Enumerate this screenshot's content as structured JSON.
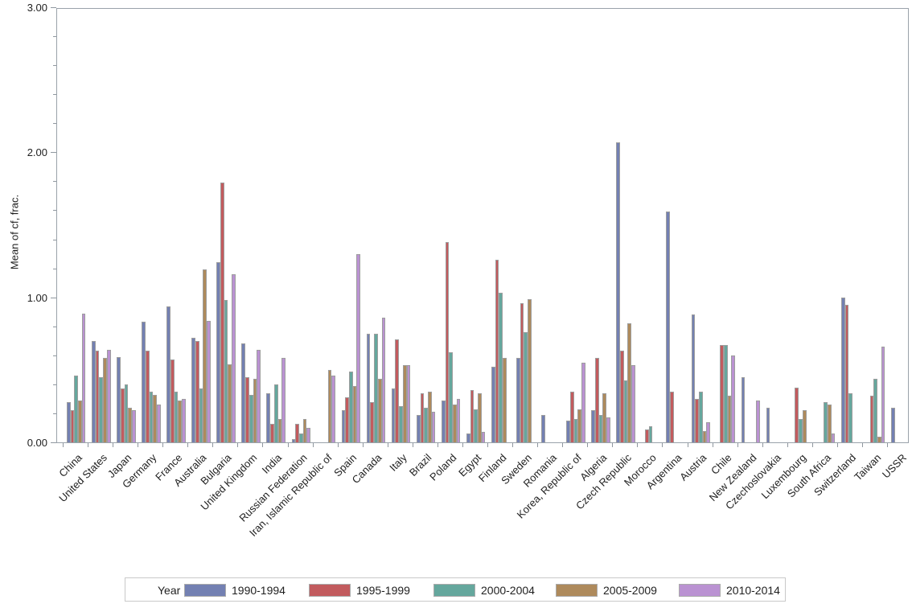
{
  "figure": {
    "y_axis_title": "Mean of cf, frac.",
    "legend_title": "Year",
    "axis_color": "#9AA2AA",
    "bar_border_color": "#9e9e9e",
    "background": "#ffffff"
  },
  "chart_data": {
    "type": "bar",
    "title": "",
    "xlabel": "",
    "ylabel": "Mean of cf, frac.",
    "ylim": [
      0,
      3.0
    ],
    "y_major_ticks": [
      0.0,
      1.0,
      2.0,
      3.0
    ],
    "y_tick_label_format": [
      "0.00",
      "1.00",
      "2.00",
      "3.00"
    ],
    "y_minor_tick_step": 0.2,
    "grid": false,
    "legend_position": "bottom",
    "legend_title": "Year",
    "categories": [
      "China",
      "United States",
      "Japan",
      "Germany",
      "France",
      "Australia",
      "Bulgaria",
      "United Kingdom",
      "India",
      "Russian Federation",
      "Iran, Islamic Republic of",
      "Spain",
      "Canada",
      "Italy",
      "Brazil",
      "Poland",
      "Egypt",
      "Finland",
      "Sweden",
      "Romania",
      "Korea, Republic of",
      "Algeria",
      "Czech Republic",
      "Morocco",
      "Argentina",
      "Austria",
      "Chile",
      "New Zealand",
      "Czechoslovakia",
      "Luxembourg",
      "South Africa",
      "Switzerland",
      "Taiwan",
      "USSR"
    ],
    "series": [
      {
        "name": "1990-1994",
        "color": "#7380B2",
        "values": [
          0.28,
          0.7,
          0.59,
          0.83,
          0.94,
          0.72,
          1.24,
          0.68,
          0.34,
          0.02,
          null,
          0.22,
          0.75,
          0.37,
          0.19,
          0.29,
          0.06,
          0.52,
          0.58,
          0.19,
          0.15,
          0.22,
          2.07,
          null,
          1.59,
          0.88,
          null,
          0.45,
          0.24,
          null,
          null,
          1.0,
          null,
          0.24
        ]
      },
      {
        "name": "1995-1999",
        "color": "#C25B5E",
        "values": [
          0.22,
          0.63,
          0.37,
          0.63,
          0.57,
          0.7,
          1.79,
          0.45,
          0.13,
          0.13,
          null,
          0.31,
          0.28,
          0.71,
          0.34,
          1.38,
          0.36,
          1.26,
          0.96,
          null,
          0.35,
          0.58,
          0.63,
          0.09,
          0.35,
          0.3,
          0.67,
          null,
          null,
          0.38,
          null,
          0.95,
          0.32,
          null
        ]
      },
      {
        "name": "2000-2004",
        "color": "#65A79D",
        "values": [
          0.46,
          0.45,
          0.4,
          0.35,
          0.35,
          0.37,
          0.98,
          0.33,
          0.4,
          0.06,
          null,
          0.49,
          0.75,
          0.25,
          0.24,
          0.62,
          0.23,
          1.03,
          0.76,
          null,
          0.16,
          0.19,
          0.43,
          0.11,
          null,
          0.35,
          0.67,
          null,
          null,
          0.16,
          0.28,
          0.34,
          0.44,
          null
        ]
      },
      {
        "name": "2005-2009",
        "color": "#AE8A5C",
        "values": [
          0.29,
          0.58,
          0.24,
          0.33,
          0.29,
          1.19,
          0.54,
          0.44,
          0.16,
          0.16,
          0.5,
          0.39,
          0.44,
          0.53,
          0.35,
          0.26,
          0.34,
          0.58,
          0.99,
          null,
          0.23,
          0.34,
          0.82,
          null,
          null,
          0.08,
          0.32,
          null,
          null,
          0.22,
          0.26,
          null,
          0.04,
          null
        ]
      },
      {
        "name": "2010-2014",
        "color": "#BA92D2",
        "values": [
          0.89,
          0.64,
          0.22,
          0.26,
          0.3,
          0.84,
          1.16,
          0.64,
          0.58,
          0.1,
          0.46,
          1.3,
          0.86,
          0.53,
          0.21,
          0.3,
          0.07,
          null,
          null,
          null,
          0.55,
          0.17,
          0.53,
          null,
          null,
          0.14,
          0.6,
          0.29,
          null,
          null,
          0.06,
          null,
          0.66,
          null
        ]
      }
    ]
  }
}
